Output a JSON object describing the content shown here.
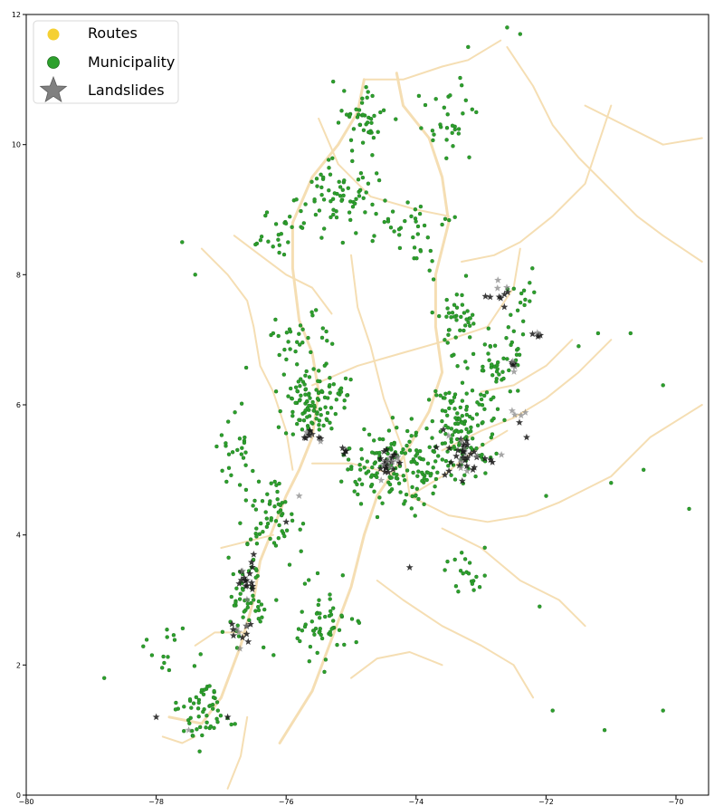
{
  "legend": {
    "items": [
      {
        "label": "Routes",
        "color": "#f5d033",
        "marker": "circle"
      },
      {
        "label": "Municipality",
        "color": "#2ca02c",
        "marker": "circle"
      },
      {
        "label": "Landslides",
        "color": "#808080",
        "marker": "star"
      }
    ]
  },
  "colors": {
    "routes": "#f5deb3",
    "routes_secondary": "#f3c4c4",
    "municipality": "#2ca02c",
    "municipality_edge": "#1f6e1f",
    "landslide": "#1a1a1a",
    "landslide_light": "#808080",
    "axes": "#000000"
  },
  "axes": {
    "x_ticks": [
      "−80",
      "−78",
      "−76",
      "−74",
      "−72",
      "−70"
    ],
    "y_ticks": [
      "0",
      "2",
      "4",
      "6",
      "8",
      "10",
      "12"
    ]
  },
  "chart_data": {
    "type": "scatter",
    "xlim": [
      -80,
      -69.5
    ],
    "ylim": [
      0,
      12
    ],
    "x_ticks": [
      -80,
      -78,
      -76,
      -74,
      -72,
      -70
    ],
    "y_ticks": [
      0,
      2,
      4,
      6,
      8,
      10,
      12
    ],
    "legend_position": "top-left",
    "grid": false,
    "series": [
      {
        "name": "Routes",
        "kind": "lines",
        "paths": [
          [
            [
              -77.8,
              1.2
            ],
            [
              -77.3,
              1.1
            ],
            [
              -77.0,
              1.5
            ],
            [
              -76.7,
              2.3
            ],
            [
              -76.5,
              3.0
            ],
            [
              -76.4,
              3.6
            ],
            [
              -76.2,
              4.1
            ],
            [
              -76.0,
              4.6
            ],
            [
              -75.8,
              5.0
            ],
            [
              -75.6,
              5.5
            ],
            [
              -75.5,
              6.2
            ],
            [
              -75.6,
              6.8
            ],
            [
              -75.8,
              7.3
            ],
            [
              -75.9,
              8.1
            ],
            [
              -75.9,
              8.8
            ],
            [
              -75.6,
              9.5
            ],
            [
              -75.2,
              10.0
            ],
            [
              -74.9,
              10.5
            ],
            [
              -74.8,
              11.0
            ]
          ],
          [
            [
              -76.1,
              0.8
            ],
            [
              -75.6,
              1.6
            ],
            [
              -75.3,
              2.4
            ],
            [
              -75.0,
              3.2
            ],
            [
              -74.8,
              4.0
            ],
            [
              -74.6,
              4.6
            ],
            [
              -74.2,
              5.2
            ],
            [
              -73.8,
              5.9
            ],
            [
              -73.6,
              6.5
            ],
            [
              -73.7,
              7.2
            ],
            [
              -73.7,
              8.0
            ],
            [
              -73.5,
              8.8
            ],
            [
              -73.6,
              9.5
            ],
            [
              -73.8,
              10.1
            ],
            [
              -74.2,
              10.6
            ],
            [
              -74.3,
              11.1
            ]
          ],
          [
            [
              -74.1,
              4.6
            ],
            [
              -73.5,
              4.3
            ],
            [
              -72.9,
              4.2
            ],
            [
              -72.3,
              4.3
            ],
            [
              -71.8,
              4.5
            ],
            [
              -71.0,
              4.9
            ],
            [
              -70.4,
              5.5
            ],
            [
              -69.6,
              6.0
            ]
          ],
          [
            [
              -73.6,
              4.1
            ],
            [
              -73.0,
              3.8
            ],
            [
              -72.4,
              3.3
            ],
            [
              -71.8,
              3.0
            ],
            [
              -71.4,
              2.6
            ]
          ],
          [
            [
              -74.1,
              4.6
            ],
            [
              -74.2,
              5.3
            ],
            [
              -74.5,
              6.1
            ],
            [
              -74.7,
              6.9
            ],
            [
              -74.9,
              7.5
            ],
            [
              -75.0,
              8.3
            ]
          ],
          [
            [
              -75.6,
              6.3
            ],
            [
              -74.9,
              6.6
            ],
            [
              -74.2,
              6.8
            ],
            [
              -73.5,
              7.0
            ],
            [
              -72.9,
              7.2
            ],
            [
              -72.5,
              7.8
            ],
            [
              -72.4,
              8.4
            ]
          ],
          [
            [
              -73.6,
              5.3
            ],
            [
              -73.0,
              5.6
            ],
            [
              -72.5,
              5.8
            ],
            [
              -72.0,
              6.1
            ],
            [
              -71.5,
              6.5
            ],
            [
              -71.0,
              7.0
            ]
          ],
          [
            [
              -73.3,
              8.2
            ],
            [
              -72.8,
              8.3
            ],
            [
              -72.4,
              8.5
            ],
            [
              -71.9,
              8.9
            ],
            [
              -71.4,
              9.4
            ],
            [
              -71.2,
              10.0
            ],
            [
              -71.0,
              10.6
            ]
          ],
          [
            [
              -72.6,
              11.5
            ],
            [
              -72.2,
              10.9
            ],
            [
              -71.9,
              10.3
            ],
            [
              -71.5,
              9.8
            ],
            [
              -71.0,
              9.3
            ],
            [
              -70.6,
              8.9
            ],
            [
              -70.2,
              8.6
            ],
            [
              -69.6,
              8.2
            ]
          ],
          [
            [
              -71.4,
              10.6
            ],
            [
              -70.8,
              10.3
            ],
            [
              -70.2,
              10.0
            ],
            [
              -69.6,
              10.1
            ]
          ],
          [
            [
              -74.8,
              11.0
            ],
            [
              -74.2,
              11.0
            ],
            [
              -73.6,
              11.2
            ],
            [
              -73.2,
              11.3
            ],
            [
              -72.7,
              11.6
            ]
          ],
          [
            [
              -75.5,
              10.4
            ],
            [
              -75.2,
              9.7
            ],
            [
              -74.7,
              9.2
            ],
            [
              -74.0,
              9.0
            ],
            [
              -73.5,
              8.9
            ]
          ],
          [
            [
              -76.8,
              8.6
            ],
            [
              -76.4,
              8.3
            ],
            [
              -76.0,
              8.0
            ],
            [
              -75.6,
              7.8
            ],
            [
              -75.3,
              7.4
            ]
          ],
          [
            [
              -77.3,
              8.4
            ],
            [
              -76.9,
              8.0
            ],
            [
              -76.6,
              7.6
            ],
            [
              -76.5,
              7.2
            ],
            [
              -76.4,
              6.6
            ],
            [
              -76.2,
              6.2
            ],
            [
              -76.0,
              5.6
            ],
            [
              -75.9,
              5.0
            ]
          ],
          [
            [
              -76.2,
              4.0
            ],
            [
              -76.6,
              3.9
            ],
            [
              -77.0,
              3.8
            ]
          ],
          [
            [
              -76.6,
              2.5
            ],
            [
              -77.1,
              2.5
            ],
            [
              -77.4,
              2.3
            ]
          ],
          [
            [
              -76.6,
              1.2
            ],
            [
              -76.7,
              0.6
            ],
            [
              -76.9,
              0.1
            ]
          ],
          [
            [
              -75.6,
              5.1
            ],
            [
              -75.0,
              5.1
            ],
            [
              -74.6,
              5.0
            ],
            [
              -74.2,
              4.9
            ]
          ],
          [
            [
              -74.1,
              4.6
            ],
            [
              -73.6,
              4.9
            ],
            [
              -73.1,
              5.3
            ],
            [
              -72.6,
              5.6
            ]
          ],
          [
            [
              -74.6,
              3.3
            ],
            [
              -74.2,
              3.0
            ],
            [
              -73.6,
              2.6
            ],
            [
              -73.0,
              2.3
            ],
            [
              -72.5,
              2.0
            ],
            [
              -72.2,
              1.5
            ]
          ],
          [
            [
              -75.0,
              1.8
            ],
            [
              -74.6,
              2.1
            ],
            [
              -74.1,
              2.2
            ],
            [
              -73.6,
              2.0
            ]
          ],
          [
            [
              -73.0,
              6.2
            ],
            [
              -72.5,
              6.3
            ],
            [
              -72.0,
              6.6
            ],
            [
              -71.6,
              7.0
            ]
          ],
          [
            [
              -77.9,
              0.9
            ],
            [
              -77.6,
              0.8
            ],
            [
              -77.4,
              0.9
            ]
          ]
        ]
      },
      {
        "name": "Municipality",
        "kind": "points",
        "clusters": [
          {
            "center": [
              -75.6,
              6.1
            ],
            "spread": [
              0.45,
              0.45
            ],
            "count": 110
          },
          {
            "center": [
              -74.3,
              5.0
            ],
            "spread": [
              0.6,
              0.5
            ],
            "count": 150
          },
          {
            "center": [
              -73.3,
              5.6
            ],
            "spread": [
              0.45,
              0.55
            ],
            "count": 120
          },
          {
            "center": [
              -72.8,
              6.6
            ],
            "spread": [
              0.35,
              0.5
            ],
            "count": 50
          },
          {
            "center": [
              -73.4,
              7.2
            ],
            "spread": [
              0.3,
              0.5
            ],
            "count": 40
          },
          {
            "center": [
              -76.2,
              4.3
            ],
            "spread": [
              0.35,
              0.5
            ],
            "count": 60
          },
          {
            "center": [
              -76.6,
              3.0
            ],
            "spread": [
              0.3,
              0.6
            ],
            "count": 55
          },
          {
            "center": [
              -75.4,
              2.6
            ],
            "spread": [
              0.35,
              0.6
            ],
            "count": 55
          },
          {
            "center": [
              -77.3,
              1.3
            ],
            "spread": [
              0.3,
              0.35
            ],
            "count": 55
          },
          {
            "center": [
              -75.1,
              9.2
            ],
            "spread": [
              0.55,
              0.45
            ],
            "count": 70
          },
          {
            "center": [
              -74.8,
              10.4
            ],
            "spread": [
              0.35,
              0.4
            ],
            "count": 45
          },
          {
            "center": [
              -73.6,
              10.4
            ],
            "spread": [
              0.45,
              0.5
            ],
            "count": 30
          },
          {
            "center": [
              -74.0,
              8.7
            ],
            "spread": [
              0.5,
              0.45
            ],
            "count": 35
          },
          {
            "center": [
              -76.0,
              8.6
            ],
            "spread": [
              0.4,
              0.35
            ],
            "count": 25
          },
          {
            "center": [
              -76.8,
              5.4
            ],
            "spread": [
              0.25,
              0.5
            ],
            "count": 25
          },
          {
            "center": [
              -72.4,
              7.6
            ],
            "spread": [
              0.2,
              0.4
            ],
            "count": 15
          },
          {
            "center": [
              -75.9,
              7.0
            ],
            "spread": [
              0.45,
              0.35
            ],
            "count": 30
          },
          {
            "center": [
              -73.2,
              3.3
            ],
            "spread": [
              0.3,
              0.4
            ],
            "count": 20
          },
          {
            "center": [
              -77.8,
              2.3
            ],
            "spread": [
              0.4,
              0.4
            ],
            "count": 15
          }
        ],
        "points": [
          [
            -78.8,
            1.8
          ],
          [
            -77.6,
            8.5
          ],
          [
            -77.4,
            8.0
          ],
          [
            -76.2,
            7.1
          ],
          [
            -70.2,
            6.3
          ],
          [
            -70.5,
            5.0
          ],
          [
            -69.8,
            4.4
          ],
          [
            -70.2,
            1.3
          ],
          [
            -71.1,
            1.0
          ],
          [
            -71.9,
            1.3
          ],
          [
            -72.1,
            2.9
          ],
          [
            -72.6,
            11.8
          ],
          [
            -72.4,
            11.7
          ],
          [
            -73.2,
            11.5
          ],
          [
            -71.5,
            6.9
          ],
          [
            -71.2,
            7.1
          ],
          [
            -70.7,
            7.1
          ],
          [
            -71.0,
            4.8
          ],
          [
            -72.0,
            4.6
          ]
        ]
      },
      {
        "name": "Landslides",
        "kind": "stars",
        "clusters": [
          {
            "center": [
              -74.4,
              5.1
            ],
            "spread": [
              0.12,
              0.15
            ],
            "count": 28
          },
          {
            "center": [
              -73.2,
              5.2
            ],
            "spread": [
              0.35,
              0.25
            ],
            "count": 40
          },
          {
            "center": [
              -75.6,
              5.5
            ],
            "spread": [
              0.15,
              0.1
            ],
            "count": 12
          },
          {
            "center": [
              -76.6,
              3.3
            ],
            "spread": [
              0.1,
              0.25
            ],
            "count": 18
          },
          {
            "center": [
              -76.7,
              2.5
            ],
            "spread": [
              0.15,
              0.2
            ],
            "count": 12
          },
          {
            "center": [
              -72.5,
              6.6
            ],
            "spread": [
              0.05,
              0.08
            ],
            "count": 8
          },
          {
            "center": [
              -72.7,
              7.7
            ],
            "spread": [
              0.15,
              0.15
            ],
            "count": 10
          },
          {
            "center": [
              -72.2,
              7.05
            ],
            "spread": [
              0.1,
              0.04
            ],
            "count": 6
          },
          {
            "center": [
              -75.1,
              5.3
            ],
            "spread": [
              0.05,
              0.04
            ],
            "count": 4
          },
          {
            "center": [
              -72.5,
              5.8
            ],
            "spread": [
              0.15,
              0.08
            ],
            "count": 5
          }
        ],
        "points": [
          [
            -78.0,
            1.2
          ],
          [
            -77.5,
            1.0
          ],
          [
            -76.9,
            1.2
          ],
          [
            -76.0,
            4.2
          ],
          [
            -74.1,
            3.5
          ],
          [
            -72.3,
            5.5
          ],
          [
            -75.8,
            4.6
          ],
          [
            -76.5,
            3.7
          ]
        ]
      }
    ]
  }
}
